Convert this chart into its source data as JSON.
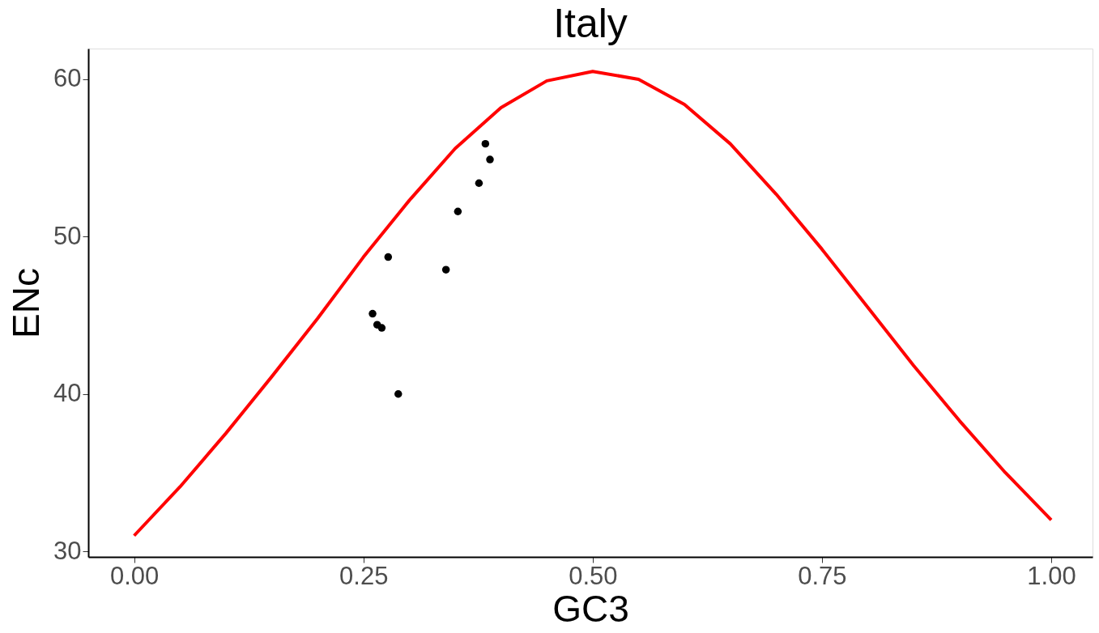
{
  "chart_data": {
    "type": "scatter",
    "title": "Italy",
    "xlabel": "GC3",
    "ylabel": "ENc",
    "xlim": [
      -0.05,
      1.045
    ],
    "ylim": [
      29.65,
      61.95
    ],
    "xticks": [
      {
        "value": 0,
        "label": "0.00"
      },
      {
        "value": 0.25,
        "label": "0.25"
      },
      {
        "value": 0.5,
        "label": "0.50"
      },
      {
        "value": 0.75,
        "label": "0.75"
      },
      {
        "value": 1,
        "label": "1.00"
      }
    ],
    "yticks": [
      30,
      40,
      50,
      60
    ],
    "grid": false,
    "marker": "circle",
    "series": [
      {
        "type": "line",
        "color": "#ff0000",
        "line_style": "solid",
        "marker": "none",
        "x": [
          0,
          0.05,
          0.1,
          0.15,
          0.2,
          0.25,
          0.3,
          0.35,
          0.4,
          0.45,
          0.5,
          0.55,
          0.6,
          0.65,
          0.7,
          0.75,
          0.8,
          0.85,
          0.9,
          0.95,
          1.0
        ],
        "values": [
          31.0,
          34.1,
          37.5,
          41.1,
          44.8,
          48.7,
          52.3,
          55.6,
          58.2,
          59.9,
          60.5,
          60.0,
          58.4,
          55.9,
          52.7,
          49.2,
          45.5,
          41.8,
          38.3,
          35.0,
          32.0
        ]
      },
      {
        "color": "#000000",
        "x": [
          0.383,
          0.388,
          0.376,
          0.353,
          0.277,
          0.34,
          0.26,
          0.265,
          0.27,
          0.288
        ],
        "values": [
          55.9,
          54.9,
          53.4,
          51.6,
          48.7,
          47.9,
          45.1,
          44.4,
          44.2,
          40.0
        ]
      }
    ]
  }
}
